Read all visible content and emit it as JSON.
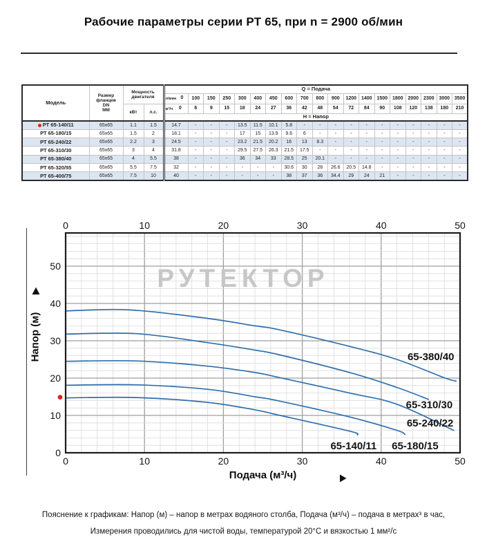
{
  "title": "Рабочие параметры серии РТ 65, при n = 2900 об/мин",
  "table": {
    "headers": {
      "model": "Модель",
      "flange_lines": [
        "Размер",
        "фланцев",
        "DN",
        "ММ"
      ],
      "power_lines": [
        "Мощность",
        "двигателя"
      ],
      "power_units": [
        "кВт",
        "л.с."
      ],
      "q_title": "Q = Подача",
      "h_title": "Н = Напор",
      "unit_lmin": "л/мин",
      "unit_m3h": "м³/ч",
      "lmin": [
        "0",
        "100",
        "150",
        "250",
        "300",
        "400",
        "450",
        "600",
        "700",
        "800",
        "900",
        "1200",
        "1400",
        "1500",
        "1800",
        "2000",
        "2300",
        "3000",
        "3500"
      ],
      "m3h": [
        "0",
        "6",
        "9",
        "15",
        "18",
        "24",
        "27",
        "36",
        "42",
        "48",
        "54",
        "72",
        "84",
        "90",
        "108",
        "120",
        "138",
        "180",
        "210"
      ]
    },
    "rows": [
      {
        "model": "РТ 65-140/11",
        "highlight": true,
        "flange": "65х65",
        "kw": "1.1",
        "hp": "1.5",
        "h": [
          "14.7",
          "-",
          "-",
          "-",
          "13.5",
          "11.5",
          "10.1",
          "5.8",
          "-",
          "-",
          "-",
          "-",
          "-",
          "-",
          "-",
          "-",
          "-",
          "-",
          "-"
        ]
      },
      {
        "model": "РТ 65-180/15",
        "highlight": false,
        "flange": "65х65",
        "kw": "1.5",
        "hp": "2",
        "h": [
          "18.1",
          "-",
          "-",
          "-",
          "17",
          "15",
          "13.9",
          "9.6",
          "6",
          "-",
          "-",
          "-",
          "-",
          "-",
          "-",
          "-",
          "-",
          "-",
          "-"
        ]
      },
      {
        "model": "РТ 65-240/22",
        "highlight": false,
        "flange": "65х65",
        "kw": "2.2",
        "hp": "3",
        "h": [
          "24.5",
          "-",
          "-",
          "-",
          "23.2",
          "21.5",
          "20.2",
          "16",
          "13",
          "8.3",
          "-",
          "-",
          "-",
          "-",
          "-",
          "-",
          "-",
          "-",
          "-"
        ]
      },
      {
        "model": "РТ 65-310/30",
        "highlight": false,
        "flange": "65х65",
        "kw": "3",
        "hp": "4",
        "h": [
          "31.8",
          "-",
          "-",
          "-",
          "29.5",
          "27.5",
          "26.3",
          "21.5",
          "17.5",
          "-",
          "-",
          "-",
          "-",
          "-",
          "-",
          "-",
          "-",
          "-",
          "-"
        ]
      },
      {
        "model": "РТ 65-380/40",
        "highlight": false,
        "flange": "65х65",
        "kw": "4",
        "hp": "5.5",
        "h": [
          "38",
          "-",
          "-",
          "-",
          "36",
          "34",
          "33",
          "28.5",
          "25",
          "20.1",
          "-",
          "-",
          "-",
          "-",
          "-",
          "-",
          "-",
          "-",
          "-"
        ]
      },
      {
        "model": "РТ 65-320/55",
        "highlight": false,
        "flange": "65х65",
        "kw": "5.5",
        "hp": "7.5",
        "h": [
          "32",
          "-",
          "-",
          "-",
          "-",
          "-",
          "-",
          "30.6",
          "30",
          "28",
          "26.6",
          "20.5",
          "14.8",
          "-",
          "-",
          "-",
          "-",
          "-",
          "-"
        ]
      },
      {
        "model": "РТ 65-400/75",
        "highlight": false,
        "flange": "65х65",
        "kw": "7.5",
        "hp": "10",
        "h": [
          "40",
          "-",
          "-",
          "-",
          "-",
          "-",
          "-",
          "38",
          "37",
          "36",
          "34.4",
          "29",
          "24",
          "21",
          "-",
          "-",
          "-",
          "-",
          "-"
        ]
      }
    ]
  },
  "chart_data": {
    "type": "line",
    "title": "",
    "xlabel": "Подача (м³/ч)",
    "ylabel": "Напор (м)",
    "xlim": [
      0,
      50
    ],
    "ylim": [
      0,
      58
    ],
    "x_ticks": [
      "0",
      "10",
      "20",
      "30",
      "40",
      "50"
    ],
    "y_ticks": [
      "0",
      "10",
      "20",
      "30",
      "40",
      "50"
    ],
    "grid": "minor every 2 units, major every 10 units",
    "legend_position": "labels next to curves, bottom-right",
    "line_color": "#2e6fad",
    "watermark": "РУТЕКТОР",
    "highlight_marker": {
      "color": "#df2417",
      "y": 14.7
    },
    "series": [
      {
        "name": "65-140/11",
        "label_at": [
          36.5,
          0.9
        ],
        "points": [
          [
            0,
            14.7
          ],
          [
            9,
            14.8
          ],
          [
            18,
            13.5
          ],
          [
            24,
            11.5
          ],
          [
            27,
            10.1
          ],
          [
            36,
            5.8
          ],
          [
            37,
            4.8
          ]
        ]
      },
      {
        "name": "65-180/15",
        "label_at": [
          44.3,
          0.9
        ],
        "points": [
          [
            0,
            18.1
          ],
          [
            9,
            18.2
          ],
          [
            18,
            17
          ],
          [
            24,
            15
          ],
          [
            27,
            13.9
          ],
          [
            36,
            9.6
          ],
          [
            42,
            6
          ],
          [
            43,
            4.9
          ]
        ]
      },
      {
        "name": "65-240/22",
        "label_at": [
          46.2,
          7.0
        ],
        "points": [
          [
            0,
            24.5
          ],
          [
            9,
            24.6
          ],
          [
            18,
            23.2
          ],
          [
            24,
            21.5
          ],
          [
            27,
            20.2
          ],
          [
            36,
            16
          ],
          [
            42,
            13
          ],
          [
            49.2,
            6
          ]
        ]
      },
      {
        "name": "65-310/30",
        "label_at": [
          46.1,
          11.9
        ],
        "points": [
          [
            0,
            31.8
          ],
          [
            9,
            31.9
          ],
          [
            18,
            29.5
          ],
          [
            24,
            27.5
          ],
          [
            27,
            26.3
          ],
          [
            36,
            21.5
          ],
          [
            42,
            17.5
          ],
          [
            46,
            14.3
          ]
        ]
      },
      {
        "name": "65-380/40",
        "label_at": [
          46.3,
          24.8
        ],
        "points": [
          [
            0,
            38
          ],
          [
            8,
            38.3
          ],
          [
            18,
            36
          ],
          [
            24,
            34
          ],
          [
            27,
            33
          ],
          [
            36,
            28.5
          ],
          [
            42,
            25
          ],
          [
            48,
            20.1
          ],
          [
            49.5,
            19.2
          ]
        ]
      }
    ]
  },
  "footer": {
    "line1": "Пояснение к графикам: Напор (м) – напор в метрах водяного столба, Подача (м³/ч) – подача в метрах³ в час,",
    "line2": "Измерения проводились для чистой воды, температурой 20°С и вязкостью 1 мм²/с"
  }
}
